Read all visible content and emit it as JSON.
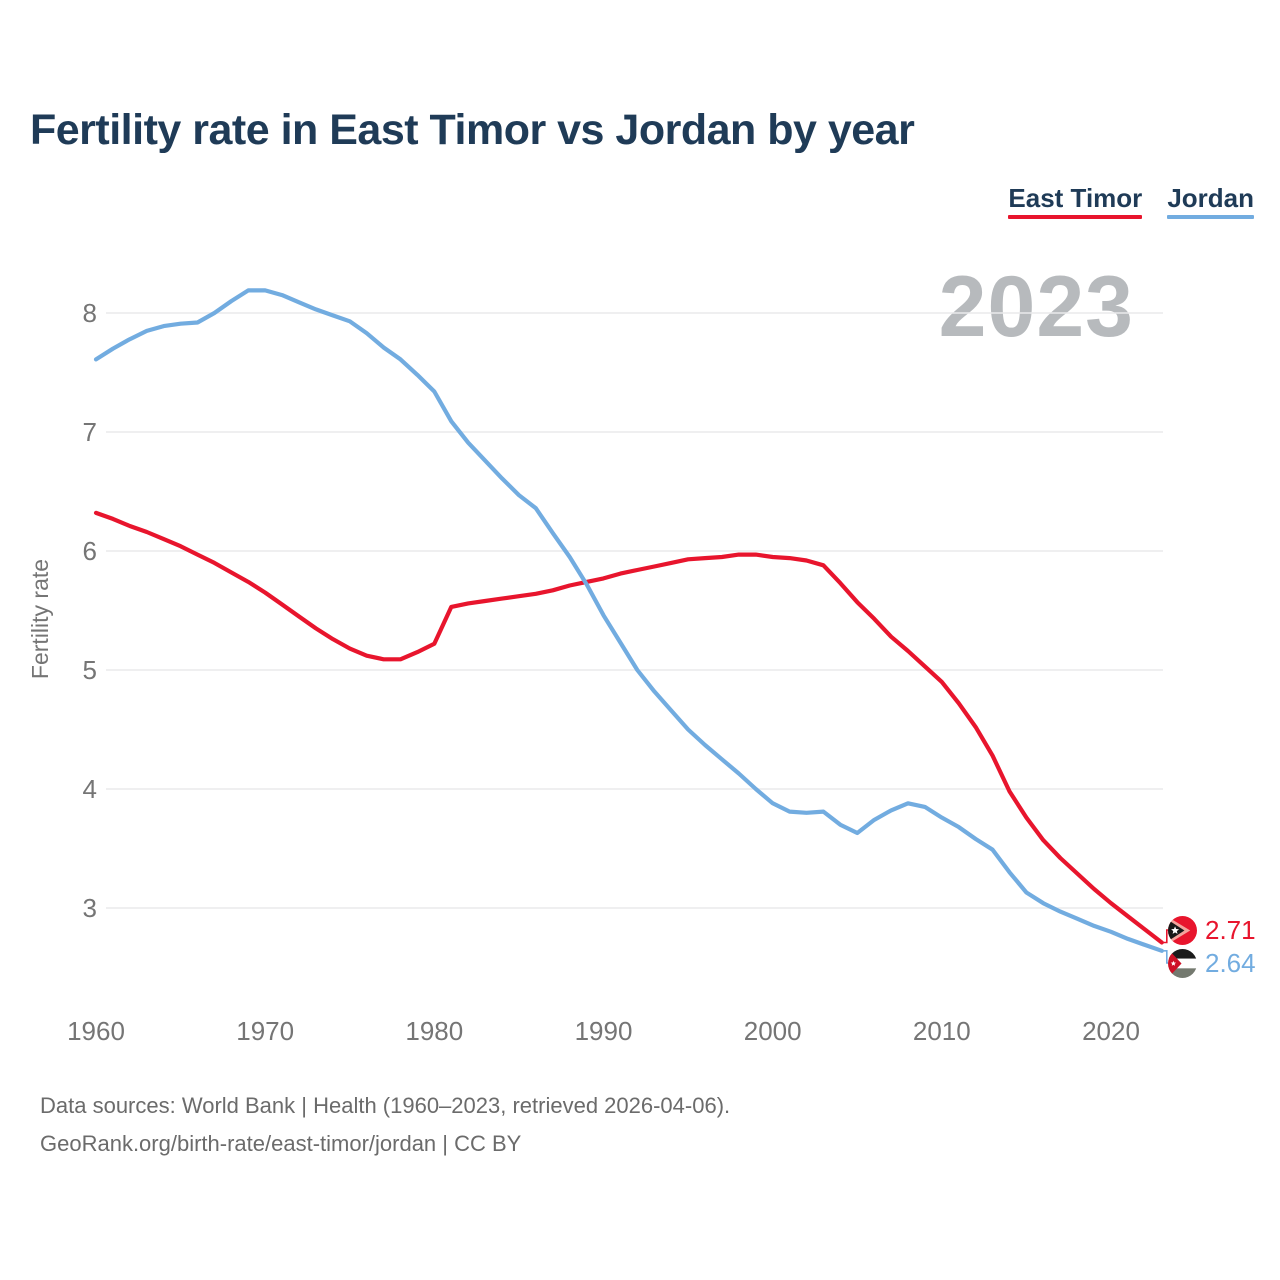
{
  "header": {
    "title": "Fertility rate in East Timor vs Jordan by year"
  },
  "legend": {
    "items": [
      {
        "label": "East Timor",
        "color": "#e8152d"
      },
      {
        "label": "Jordan",
        "color": "#72ace0"
      }
    ]
  },
  "watermark": "2023",
  "end_labels": [
    {
      "series": "East Timor",
      "value": "2.71",
      "flag": "east-timor",
      "color": "#e8152d"
    },
    {
      "series": "Jordan",
      "value": "2.64",
      "flag": "jordan",
      "color": "#72ace0"
    }
  ],
  "source": {
    "line1": "Data sources: World Bank | Health (1960–2023, retrieved 2026-04-06).",
    "line2": "GeoRank.org/birth-rate/east-timor/jordan | CC BY"
  },
  "chart_data": {
    "type": "line",
    "title": "Fertility rate in East Timor vs Jordan by year",
    "xlabel": "",
    "ylabel": "Fertility rate",
    "grid": "horizontal",
    "legend_position": "top-right",
    "xticks": [
      1960,
      1970,
      1980,
      1990,
      2000,
      2010,
      2020
    ],
    "yticks": [
      3,
      4,
      5,
      6,
      7,
      8
    ],
    "xlim": [
      1960,
      2023
    ],
    "ylim": [
      2.5,
      8.5
    ],
    "x": [
      1960,
      1961,
      1962,
      1963,
      1964,
      1965,
      1966,
      1967,
      1968,
      1969,
      1970,
      1971,
      1972,
      1973,
      1974,
      1975,
      1976,
      1977,
      1978,
      1979,
      1980,
      1981,
      1982,
      1983,
      1984,
      1985,
      1986,
      1987,
      1988,
      1989,
      1990,
      1991,
      1992,
      1993,
      1994,
      1995,
      1996,
      1997,
      1998,
      1999,
      2000,
      2001,
      2002,
      2003,
      2004,
      2005,
      2006,
      2007,
      2008,
      2009,
      2010,
      2011,
      2012,
      2013,
      2014,
      2015,
      2016,
      2017,
      2018,
      2019,
      2020,
      2021,
      2022,
      2023
    ],
    "series": [
      {
        "name": "East Timor",
        "id": "east-timor",
        "color": "#e8152d",
        "values": [
          6.32,
          6.27,
          6.21,
          6.16,
          6.1,
          6.04,
          5.97,
          5.9,
          5.82,
          5.74,
          5.65,
          5.55,
          5.45,
          5.35,
          5.26,
          5.18,
          5.12,
          5.09,
          5.09,
          5.15,
          5.22,
          5.53,
          5.56,
          5.58,
          5.6,
          5.62,
          5.64,
          5.67,
          5.71,
          5.74,
          5.77,
          5.81,
          5.84,
          5.87,
          5.9,
          5.93,
          5.94,
          5.95,
          5.97,
          5.97,
          5.95,
          5.94,
          5.92,
          5.88,
          5.73,
          5.57,
          5.43,
          5.28,
          5.16,
          5.03,
          4.9,
          4.72,
          4.52,
          4.28,
          3.98,
          3.76,
          3.57,
          3.42,
          3.29,
          3.16,
          3.04,
          2.93,
          2.82,
          2.71
        ]
      },
      {
        "name": "Jordan",
        "id": "jordan",
        "color": "#72ace0",
        "values": [
          7.61,
          7.7,
          7.78,
          7.85,
          7.89,
          7.91,
          7.92,
          8.0,
          8.1,
          8.19,
          8.19,
          8.15,
          8.09,
          8.03,
          7.98,
          7.93,
          7.83,
          7.71,
          7.61,
          7.48,
          7.34,
          7.09,
          6.91,
          6.76,
          6.61,
          6.47,
          6.36,
          6.15,
          5.95,
          5.72,
          5.46,
          5.23,
          5.0,
          4.82,
          4.66,
          4.5,
          4.37,
          4.25,
          4.13,
          4.0,
          3.88,
          3.81,
          3.8,
          3.81,
          3.7,
          3.63,
          3.74,
          3.82,
          3.88,
          3.85,
          3.76,
          3.68,
          3.58,
          3.49,
          3.3,
          3.13,
          3.04,
          2.97,
          2.91,
          2.85,
          2.8,
          2.74,
          2.69,
          2.64
        ]
      }
    ]
  }
}
